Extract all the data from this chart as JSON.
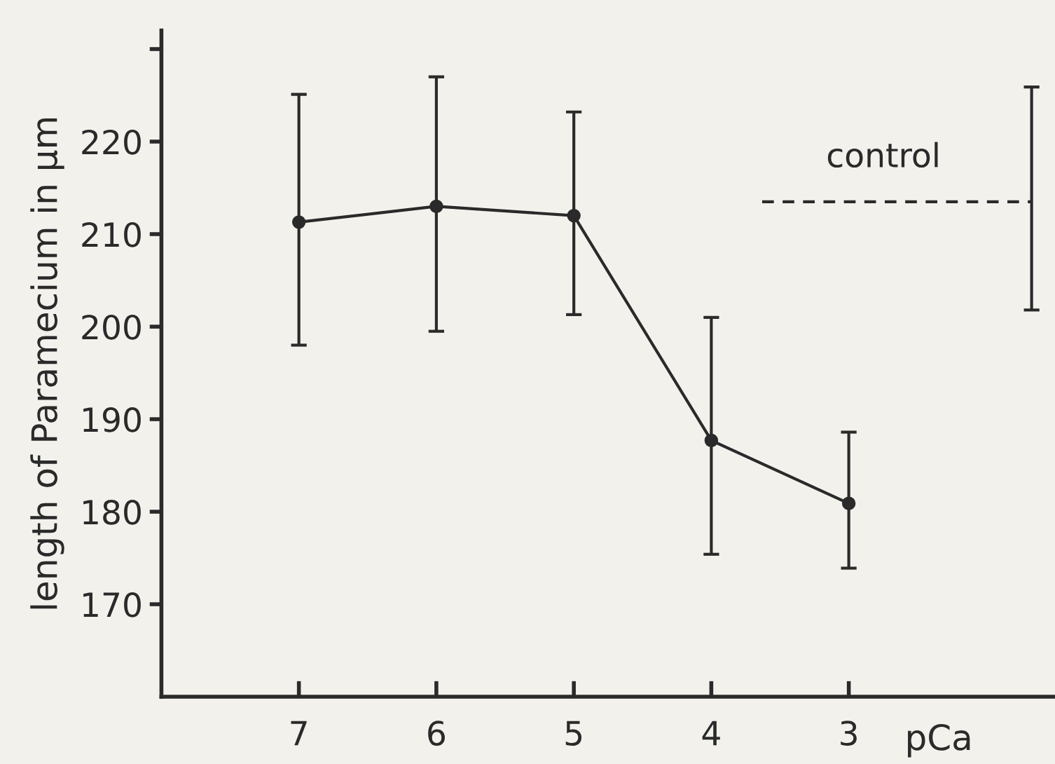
{
  "chart_data": {
    "type": "line",
    "xlabel": "pCa",
    "ylabel": "length of Paramecium in μm",
    "xlim": [
      8,
      1.5
    ],
    "xticks": [
      7,
      6,
      5,
      4,
      3
    ],
    "ylim": [
      160,
      232
    ],
    "yticks": [
      170,
      180,
      190,
      200,
      210,
      220,
      {
        "value": 230,
        "label": null
      }
    ],
    "x": [
      7,
      6,
      5,
      4,
      3
    ],
    "marker": "circle",
    "line_style": "solid",
    "grid": false,
    "series": [
      {
        "color": "#2a2a2a",
        "values": [
          211.3,
          213.0,
          212.0,
          187.7,
          180.9
        ],
        "errors": [
          [
            198.0,
            225.1
          ],
          [
            199.5,
            227.0
          ],
          [
            201.3,
            223.2
          ],
          [
            175.4,
            201.0
          ],
          [
            173.9,
            188.6
          ]
        ]
      },
      {
        "name": "control",
        "color": "#2a2a2a",
        "x": [
          3.63,
          1.67
        ],
        "values": [
          213.5,
          213.5
        ],
        "errors": [
          null,
          [
            201.8,
            225.9
          ]
        ],
        "marker": "none",
        "line_style": "dashed"
      }
    ]
  }
}
